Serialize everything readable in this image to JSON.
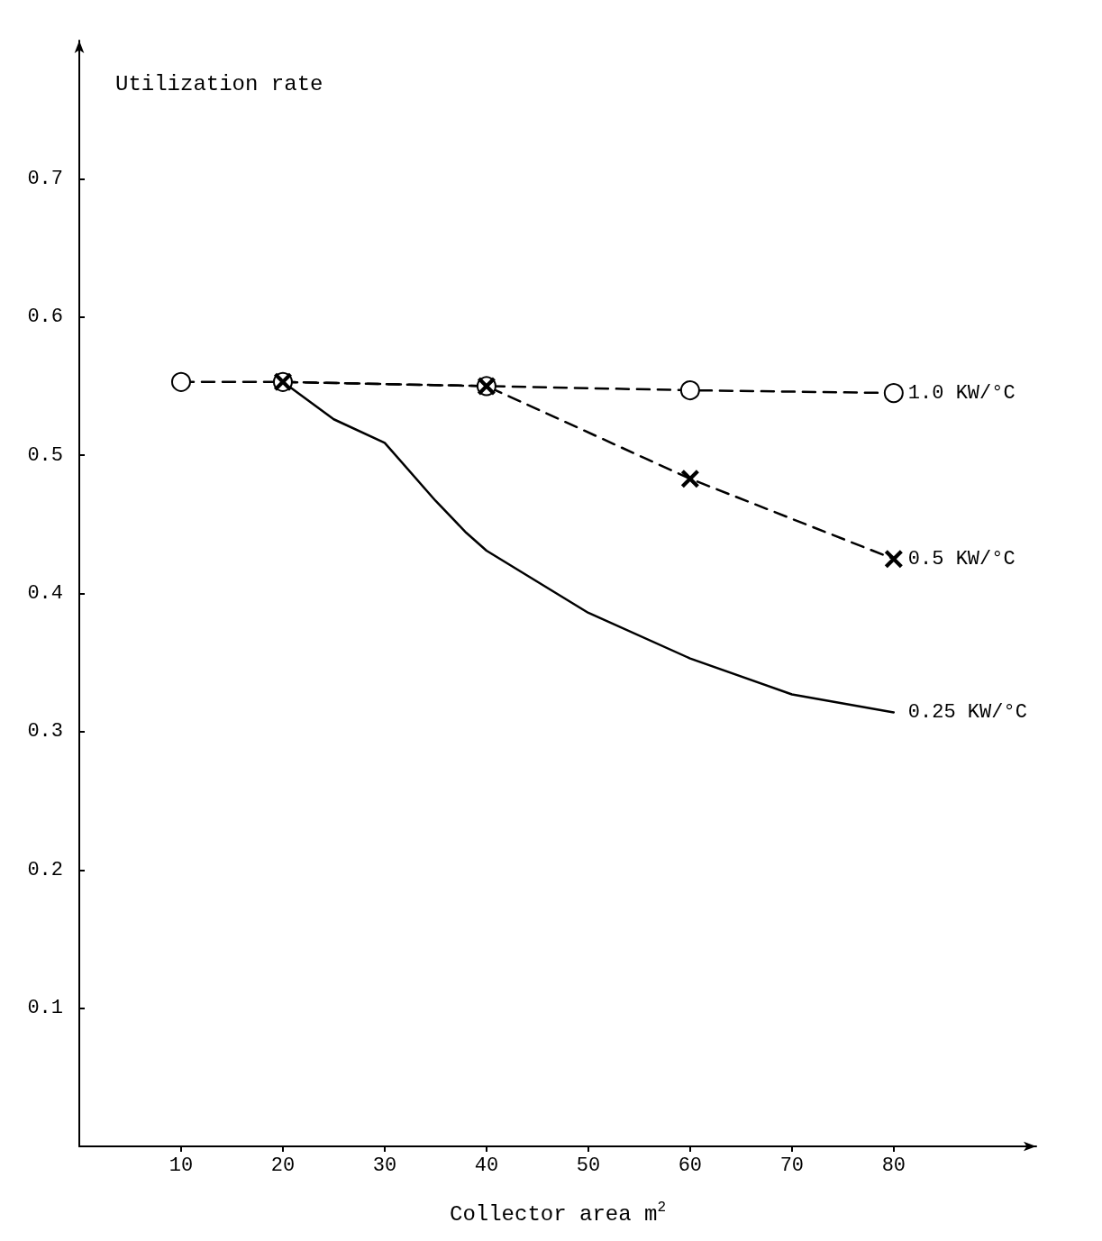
{
  "chart_data": {
    "type": "line",
    "xlabel": "Collector area m$^{2}$",
    "ylabel": "Utilization rate",
    "xlim": [
      0,
      94
    ],
    "xticks": [
      10,
      20,
      30,
      40,
      50,
      60,
      70,
      80
    ],
    "ylim": [
      0,
      0.8
    ],
    "yticks": [
      0.1,
      0.2,
      0.3,
      0.4,
      0.5,
      0.6,
      0.7
    ],
    "grid": false,
    "legend": false,
    "series": [
      {
        "name": "1.0 KW/°C",
        "color": "#000000",
        "marker": "circle",
        "line_style": "dashed",
        "x": [
          10,
          20,
          40,
          60,
          80
        ],
        "values": [
          0.553,
          0.553,
          0.55,
          0.547,
          0.545
        ]
      },
      {
        "name": "0.5 KW/°C",
        "color": "#000000",
        "marker": "cross",
        "line_style": "dashed",
        "x": [
          20,
          40,
          60,
          80
        ],
        "values": [
          0.553,
          0.55,
          0.483,
          0.425
        ]
      },
      {
        "name": "0.25 KW/°C",
        "color": "#000000",
        "marker": "none",
        "line_style": "solid",
        "x": [
          20,
          25,
          30,
          35,
          38,
          40,
          50,
          60,
          70,
          80
        ],
        "values": [
          0.553,
          0.526,
          0.509,
          0.467,
          0.444,
          0.431,
          0.386,
          0.353,
          0.327,
          0.314
        ]
      }
    ]
  }
}
